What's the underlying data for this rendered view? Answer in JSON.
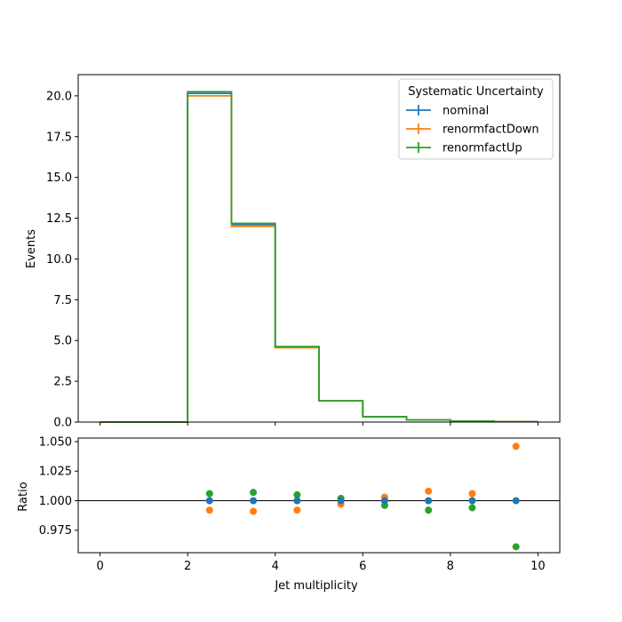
{
  "chart_data": [
    {
      "type": "line",
      "panel": "main",
      "drawstyle": "steps",
      "xlabel": "",
      "ylabel": "Events",
      "xlim": [
        -0.5,
        10.5
      ],
      "ylim": [
        0,
        21.3
      ],
      "bin_edges": [
        0,
        1,
        2,
        3,
        4,
        5,
        6,
        7,
        8,
        9,
        10
      ],
      "xticks": [
        "0",
        "2",
        "4",
        "6",
        "8",
        "10"
      ],
      "yticks": [
        "0.0",
        "2.5",
        "5.0",
        "7.5",
        "10.0",
        "12.5",
        "15.0",
        "17.5",
        "20.0"
      ],
      "grid": false,
      "legend": {
        "title": "Systematic Uncertainty",
        "placement": "top-right"
      },
      "series": [
        {
          "name": "nominal",
          "color": "#1f77b4",
          "values": [
            0,
            0,
            20.15,
            12.1,
            4.6,
            1.3,
            0.33,
            0.13,
            0.05,
            0.02
          ]
        },
        {
          "name": "renormfactDown",
          "color": "#ff7f0e",
          "values": [
            0,
            0,
            20.0,
            12.0,
            4.56,
            1.3,
            0.33,
            0.13,
            0.05,
            0.02
          ]
        },
        {
          "name": "renormfactUp",
          "color": "#2ca02c",
          "values": [
            0,
            0,
            20.25,
            12.18,
            4.63,
            1.3,
            0.33,
            0.13,
            0.05,
            0.02
          ]
        }
      ]
    },
    {
      "type": "scatter",
      "panel": "ratio",
      "xlabel": "Jet multiplicity",
      "ylabel": "Ratio",
      "xlim": [
        -0.5,
        10.5
      ],
      "ylim": [
        0.956,
        1.053
      ],
      "xticks": [
        "0",
        "2",
        "4",
        "6",
        "8",
        "10"
      ],
      "yticks": [
        "0.975",
        "1.000",
        "1.025",
        "1.050"
      ],
      "reference_line": 1.0,
      "x": [
        2.5,
        3.5,
        4.5,
        5.5,
        6.5,
        7.5,
        8.5,
        9.5
      ],
      "series": [
        {
          "name": "nominal",
          "color": "#1f77b4",
          "values": [
            1.0,
            1.0,
            1.0,
            1.0,
            1.0,
            1.0,
            1.0,
            1.0
          ]
        },
        {
          "name": "renormfactDown",
          "color": "#ff7f0e",
          "values": [
            0.992,
            0.991,
            0.992,
            0.997,
            1.003,
            1.008,
            1.006,
            1.046
          ]
        },
        {
          "name": "renormfactUp",
          "color": "#2ca02c",
          "values": [
            1.006,
            1.007,
            1.005,
            1.002,
            0.996,
            0.992,
            0.994,
            0.961
          ]
        }
      ]
    }
  ]
}
